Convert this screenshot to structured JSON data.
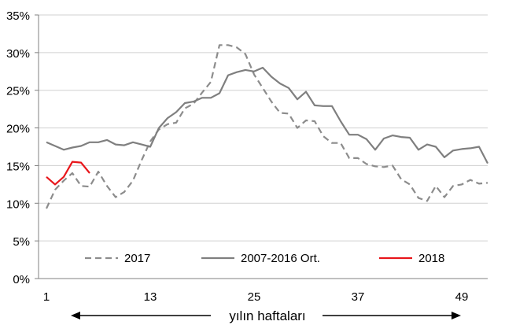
{
  "chart_data": {
    "type": "line",
    "title": "",
    "xlabel": "yılın haftaları",
    "ylabel": "",
    "xlim": [
      1,
      52
    ],
    "ylim": [
      0,
      35
    ],
    "x_ticks": [
      1,
      13,
      25,
      37,
      49
    ],
    "y_ticks": [
      0,
      5,
      10,
      15,
      20,
      25,
      30,
      35
    ],
    "y_tick_labels": [
      "0%",
      "5%",
      "10%",
      "15%",
      "20%",
      "25%",
      "30%",
      "35%"
    ],
    "grid": "horizontal",
    "legend_position": "bottom-inside",
    "series": [
      {
        "name": "2017",
        "style": "dashed",
        "color": "#8c8c8c",
        "x": [
          1,
          2,
          3,
          4,
          5,
          6,
          7,
          8,
          9,
          10,
          11,
          12,
          13,
          14,
          15,
          16,
          17,
          18,
          19,
          20,
          21,
          22,
          23,
          24,
          25,
          26,
          27,
          28,
          29,
          30,
          31,
          32,
          33,
          34,
          35,
          36,
          37,
          38,
          39,
          40,
          41,
          42,
          43,
          44,
          45,
          46,
          47,
          48,
          49,
          50,
          51,
          52
        ],
        "values": [
          9.3,
          11.8,
          13.0,
          14.0,
          12.3,
          12.2,
          14.2,
          12.3,
          10.8,
          11.5,
          13.0,
          15.7,
          18.2,
          19.8,
          20.5,
          20.7,
          22.6,
          23.2,
          24.7,
          26.1,
          31.0,
          31.0,
          30.7,
          29.8,
          27.1,
          25.3,
          23.5,
          22.0,
          21.9,
          20.0,
          21.0,
          20.9,
          18.9,
          18.0,
          18.0,
          16.0,
          16.0,
          15.2,
          14.9,
          14.8,
          15.0,
          13.2,
          12.5,
          10.7,
          10.3,
          12.3,
          10.8,
          12.3,
          12.5,
          13.1,
          12.6,
          12.7
        ]
      },
      {
        "name": "2007-2016 Ort.",
        "style": "solid",
        "color": "#7f7f7f",
        "x": [
          1,
          2,
          3,
          4,
          5,
          6,
          7,
          8,
          9,
          10,
          11,
          12,
          13,
          14,
          15,
          16,
          17,
          18,
          19,
          20,
          21,
          22,
          23,
          24,
          25,
          26,
          27,
          28,
          29,
          30,
          31,
          32,
          33,
          34,
          35,
          36,
          37,
          38,
          39,
          40,
          41,
          42,
          43,
          44,
          45,
          46,
          47,
          48,
          49,
          50,
          51,
          52
        ],
        "values": [
          18.1,
          17.6,
          17.1,
          17.4,
          17.6,
          18.1,
          18.1,
          18.4,
          17.8,
          17.7,
          18.1,
          17.8,
          17.5,
          20.0,
          21.3,
          22.1,
          23.3,
          23.5,
          24.0,
          24.0,
          24.6,
          27.0,
          27.4,
          27.7,
          27.5,
          28.0,
          26.8,
          25.9,
          25.3,
          23.8,
          24.8,
          23.0,
          22.9,
          22.9,
          20.9,
          19.1,
          19.1,
          18.5,
          17.1,
          18.6,
          19.0,
          18.8,
          18.7,
          17.1,
          17.8,
          17.5,
          16.1,
          17.0,
          17.2,
          17.3,
          17.5,
          15.3
        ]
      },
      {
        "name": "2018",
        "style": "solid",
        "color": "#e8161b",
        "x": [
          1,
          2,
          3,
          4,
          5,
          6
        ],
        "values": [
          13.5,
          12.5,
          13.5,
          15.5,
          15.4,
          14.0
        ]
      }
    ]
  }
}
